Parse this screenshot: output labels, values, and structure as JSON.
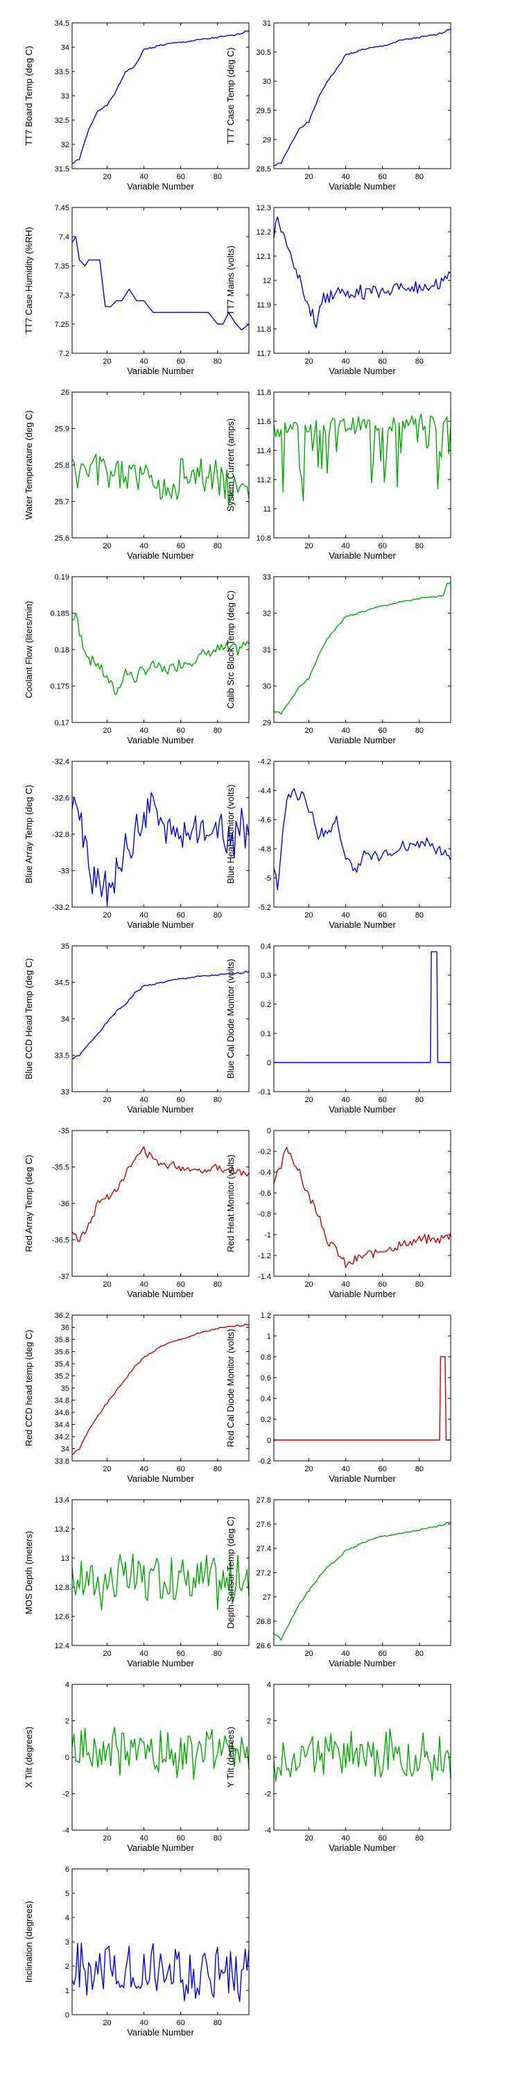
{
  "chart_data": [
    {
      "type": "line",
      "xlabel": "Variable Number",
      "ylabel": "TT7 Board Temp (deg C)",
      "color": "#0000ff",
      "xlim": [
        1,
        97
      ],
      "xticks": [
        20,
        40,
        60,
        80
      ],
      "ylim": [
        31.5,
        34.5
      ],
      "yticks": [
        31.5,
        32,
        32.5,
        33,
        33.5,
        34,
        34.5
      ],
      "style": "rise",
      "x": [
        1,
        5,
        10,
        15,
        20,
        25,
        30,
        35,
        40,
        50,
        60,
        70,
        80,
        90,
        97
      ],
      "y": [
        31.6,
        31.7,
        32.3,
        32.7,
        32.8,
        33.1,
        33.5,
        33.6,
        33.95,
        34.05,
        34.1,
        34.15,
        34.2,
        34.25,
        34.35
      ]
    },
    {
      "type": "line",
      "xlabel": "Variable Number",
      "ylabel": "TT7 Case Temp (deg C)",
      "color": "#0000ff",
      "xlim": [
        1,
        97
      ],
      "xticks": [
        20,
        40,
        60,
        80
      ],
      "ylim": [
        28.5,
        31
      ],
      "yticks": [
        28.5,
        29,
        29.5,
        30,
        30.5,
        31
      ],
      "style": "rise",
      "x": [
        1,
        5,
        10,
        15,
        20,
        25,
        30,
        35,
        40,
        50,
        60,
        70,
        80,
        90,
        97
      ],
      "y": [
        28.55,
        28.6,
        28.9,
        29.2,
        29.3,
        29.7,
        30.0,
        30.2,
        30.45,
        30.55,
        30.6,
        30.7,
        30.75,
        30.8,
        30.9
      ]
    },
    {
      "type": "line",
      "xlabel": "Variable Number",
      "ylabel": "TT7 Case Humidity (%RH)",
      "color": "#0000ff",
      "xlim": [
        1,
        97
      ],
      "xticks": [
        20,
        40,
        60,
        80
      ],
      "ylim": [
        7.2,
        7.45
      ],
      "yticks": [
        7.2,
        7.25,
        7.3,
        7.35,
        7.4,
        7.45
      ],
      "style": "step",
      "x": [
        1,
        3,
        5,
        8,
        10,
        16,
        19,
        22,
        25,
        28,
        32,
        36,
        40,
        45,
        50,
        55,
        60,
        65,
        70,
        75,
        80,
        83,
        86,
        90,
        93,
        97
      ],
      "y": [
        7.39,
        7.4,
        7.36,
        7.35,
        7.36,
        7.36,
        7.28,
        7.28,
        7.29,
        7.29,
        7.31,
        7.29,
        7.29,
        7.27,
        7.27,
        7.27,
        7.27,
        7.27,
        7.27,
        7.27,
        7.25,
        7.25,
        7.27,
        7.25,
        7.24,
        7.25
      ]
    },
    {
      "type": "line",
      "xlabel": "Variable Number",
      "ylabel": "TT7 Mains (volts)",
      "color": "#0000ff",
      "xlim": [
        1,
        97
      ],
      "xticks": [
        20,
        40,
        60,
        80
      ],
      "ylim": [
        11.7,
        12.3
      ],
      "yticks": [
        11.7,
        11.8,
        11.9,
        12,
        12.1,
        12.2,
        12.3
      ],
      "style": "noisy",
      "noise": 0.025,
      "seed": 4,
      "x": [
        1,
        3,
        5,
        8,
        10,
        15,
        20,
        24,
        28,
        35,
        40,
        50,
        60,
        70,
        80,
        90,
        97
      ],
      "y": [
        12.2,
        12.27,
        12.2,
        12.15,
        12.1,
        12.0,
        11.9,
        11.82,
        11.93,
        11.95,
        11.96,
        11.95,
        11.96,
        11.97,
        11.97,
        11.98,
        12.02
      ]
    },
    {
      "type": "line",
      "xlabel": "Variable Number",
      "ylabel": "Water Temperature (deg C)",
      "color": "#00aa00",
      "xlim": [
        1,
        97
      ],
      "xticks": [
        20,
        40,
        60,
        80
      ],
      "ylim": [
        25.6,
        26
      ],
      "yticks": [
        25.6,
        25.7,
        25.8,
        25.9,
        26
      ],
      "style": "noisy",
      "noise": 0.045,
      "seed": 5,
      "x": [
        1,
        20,
        40,
        58,
        60,
        80,
        97
      ],
      "y": [
        25.78,
        25.78,
        25.77,
        25.72,
        25.78,
        25.77,
        25.7
      ]
    },
    {
      "type": "line",
      "xlabel": "Variable Number",
      "ylabel": "System Current (amps)",
      "color": "#00aa00",
      "xlim": [
        1,
        97
      ],
      "xticks": [
        20,
        40,
        60,
        80
      ],
      "ylim": [
        10.8,
        11.8
      ],
      "yticks": [
        10.8,
        11,
        11.2,
        11.4,
        11.6,
        11.8
      ],
      "style": "spiky",
      "noise": 0.06,
      "seed": 6,
      "base": 11.55,
      "drop": 0.4,
      "x": [
        1,
        97
      ],
      "y": [
        11.55,
        11.6
      ]
    },
    {
      "type": "line",
      "xlabel": "Variable Number",
      "ylabel": "Coolant Flow (liters/min)",
      "color": "#00aa00",
      "xlim": [
        1,
        97
      ],
      "xticks": [
        20,
        40,
        60,
        80
      ],
      "ylim": [
        0.17,
        0.19
      ],
      "yticks": [
        0.17,
        0.175,
        0.18,
        0.185,
        0.19
      ],
      "style": "noisy",
      "noise": 0.0008,
      "seed": 7,
      "x": [
        1,
        3,
        5,
        10,
        15,
        20,
        25,
        30,
        35,
        40,
        45,
        50,
        60,
        70,
        80,
        90,
        97
      ],
      "y": [
        0.184,
        0.185,
        0.182,
        0.179,
        0.178,
        0.176,
        0.174,
        0.177,
        0.176,
        0.177,
        0.178,
        0.177,
        0.178,
        0.179,
        0.18,
        0.18,
        0.181
      ]
    },
    {
      "type": "line",
      "xlabel": "Variable Number",
      "ylabel": "Calib Src Block Temp (deg C)",
      "color": "#00aa00",
      "xlim": [
        1,
        97
      ],
      "xticks": [
        20,
        40,
        60,
        80
      ],
      "ylim": [
        29,
        33
      ],
      "yticks": [
        29,
        30,
        31,
        32,
        33
      ],
      "style": "rise",
      "x": [
        1,
        5,
        10,
        15,
        20,
        25,
        30,
        35,
        40,
        50,
        60,
        70,
        80,
        90,
        93,
        95,
        97
      ],
      "y": [
        29.3,
        29.25,
        29.6,
        30.0,
        30.2,
        30.8,
        31.3,
        31.6,
        31.9,
        32.05,
        32.2,
        32.3,
        32.4,
        32.45,
        32.5,
        32.8,
        32.85
      ]
    },
    {
      "type": "line",
      "xlabel": "Variable Number",
      "ylabel": "Blue Array Temp (deg C)",
      "color": "#0000ff",
      "xlim": [
        1,
        97
      ],
      "xticks": [
        20,
        40,
        60,
        80
      ],
      "ylim": [
        -33.2,
        -32.4
      ],
      "yticks": [
        -33.2,
        -33,
        -32.8,
        -32.6,
        -32.4
      ],
      "style": "noisy",
      "noise": 0.1,
      "seed": 9,
      "x": [
        1,
        5,
        10,
        15,
        20,
        25,
        30,
        40,
        45,
        50,
        60,
        70,
        80,
        90,
        97
      ],
      "y": [
        -32.6,
        -32.7,
        -33.0,
        -33.1,
        -33.1,
        -33.0,
        -32.9,
        -32.7,
        -32.6,
        -32.8,
        -32.8,
        -32.75,
        -32.8,
        -32.8,
        -32.75
      ]
    },
    {
      "type": "line",
      "xlabel": "Variable Number",
      "ylabel": "Blue Heat Monitor (volts)",
      "color": "#0000ff",
      "xlim": [
        1,
        97
      ],
      "xticks": [
        20,
        40,
        60,
        80
      ],
      "ylim": [
        -5.2,
        -4.2
      ],
      "yticks": [
        -5.2,
        -5,
        -4.8,
        -4.6,
        -4.4,
        -4.2
      ],
      "style": "noisy",
      "noise": 0.04,
      "seed": 10,
      "x": [
        1,
        3,
        5,
        8,
        12,
        18,
        22,
        25,
        30,
        35,
        40,
        45,
        50,
        60,
        70,
        80,
        90,
        97
      ],
      "y": [
        -4.9,
        -5.1,
        -4.8,
        -4.45,
        -4.4,
        -4.45,
        -4.6,
        -4.7,
        -4.7,
        -4.6,
        -4.85,
        -4.95,
        -4.85,
        -4.85,
        -4.8,
        -4.75,
        -4.8,
        -4.85
      ]
    },
    {
      "type": "line",
      "xlabel": "Variable Number",
      "ylabel": "Blue CCD Head Temp (deg C)",
      "color": "#0000ff",
      "xlim": [
        1,
        97
      ],
      "xticks": [
        20,
        40,
        60,
        80
      ],
      "ylim": [
        33,
        35
      ],
      "yticks": [
        33,
        33.5,
        34,
        34.5,
        35
      ],
      "style": "rise",
      "x": [
        1,
        5,
        10,
        15,
        20,
        25,
        30,
        35,
        40,
        50,
        60,
        70,
        80,
        90,
        97
      ],
      "y": [
        33.45,
        33.5,
        33.65,
        33.8,
        33.95,
        34.1,
        34.2,
        34.35,
        34.45,
        34.5,
        34.55,
        34.58,
        34.6,
        34.62,
        34.65
      ]
    },
    {
      "type": "line",
      "xlabel": "Variable Number",
      "ylabel": "Blue Cal Diode Monitor (volts)",
      "color": "#0000ff",
      "xlim": [
        1,
        97
      ],
      "xticks": [
        20,
        40,
        60,
        80
      ],
      "ylim": [
        -0.1,
        0.4
      ],
      "yticks": [
        -0.1,
        0,
        0.1,
        0.2,
        0.3,
        0.4
      ],
      "style": "pulse",
      "x": [
        1,
        86,
        86.5,
        89.5,
        90,
        97
      ],
      "y": [
        0,
        0,
        0.38,
        0.38,
        0,
        0
      ]
    },
    {
      "type": "line",
      "xlabel": "Variable Number",
      "ylabel": "Red Array Temp (deg C)",
      "color": "#cc0000",
      "xlim": [
        1,
        97
      ],
      "xticks": [
        20,
        40,
        60,
        80
      ],
      "ylim": [
        -37,
        -35
      ],
      "yticks": [
        -37,
        -36.5,
        -36,
        -35.5,
        -35
      ],
      "style": "noisy",
      "noise": 0.05,
      "seed": 13,
      "x": [
        1,
        5,
        10,
        15,
        20,
        25,
        30,
        35,
        40,
        45,
        50,
        60,
        70,
        80,
        90,
        97
      ],
      "y": [
        -36.4,
        -36.5,
        -36.3,
        -36.0,
        -35.9,
        -35.8,
        -35.6,
        -35.4,
        -35.25,
        -35.4,
        -35.45,
        -35.5,
        -35.55,
        -35.5,
        -35.55,
        -35.6
      ]
    },
    {
      "type": "line",
      "xlabel": "Variable Number",
      "ylabel": "Red Heat Monitor (volts)",
      "color": "#cc0000",
      "xlim": [
        1,
        97
      ],
      "xticks": [
        20,
        40,
        60,
        80
      ],
      "ylim": [
        -1.4,
        0
      ],
      "yticks": [
        -1.4,
        -1.2,
        -1,
        -0.8,
        -0.6,
        -0.4,
        -0.2,
        0
      ],
      "style": "noisy",
      "noise": 0.04,
      "seed": 14,
      "x": [
        1,
        5,
        8,
        12,
        18,
        25,
        30,
        35,
        40,
        45,
        50,
        60,
        70,
        80,
        90,
        97
      ],
      "y": [
        -0.5,
        -0.35,
        -0.15,
        -0.3,
        -0.55,
        -0.8,
        -1.05,
        -1.15,
        -1.3,
        -1.25,
        -1.2,
        -1.15,
        -1.1,
        -1.05,
        -1.05,
        -1.0
      ]
    },
    {
      "type": "line",
      "xlabel": "Variable Number",
      "ylabel": "Red CCD head temp (deg C)",
      "color": "#cc0000",
      "xlim": [
        1,
        97
      ],
      "xticks": [
        20,
        40,
        60,
        80
      ],
      "ylim": [
        33.8,
        36.2
      ],
      "yticks": [
        33.8,
        34,
        34.2,
        34.4,
        34.6,
        34.8,
        35,
        35.2,
        35.4,
        35.6,
        35.8,
        36,
        36.2
      ],
      "style": "rise",
      "x": [
        1,
        5,
        10,
        15,
        20,
        25,
        30,
        35,
        40,
        50,
        60,
        70,
        80,
        90,
        97
      ],
      "y": [
        33.9,
        34.0,
        34.3,
        34.55,
        34.75,
        34.95,
        35.15,
        35.35,
        35.5,
        35.7,
        35.8,
        35.9,
        35.98,
        36.02,
        36.05
      ]
    },
    {
      "type": "line",
      "xlabel": "Variable Number",
      "ylabel": "Red Cal Diode Monitor (volts)",
      "color": "#cc0000",
      "xlim": [
        1,
        97
      ],
      "xticks": [
        20,
        40,
        60,
        80
      ],
      "ylim": [
        -0.2,
        1.2
      ],
      "yticks": [
        -0.2,
        0,
        0.2,
        0.4,
        0.6,
        0.8,
        1,
        1.2
      ],
      "style": "pulse",
      "x": [
        1,
        91,
        91.5,
        94,
        94.5,
        97
      ],
      "y": [
        0,
        0,
        0.8,
        0.8,
        0,
        0
      ]
    },
    {
      "type": "line",
      "xlabel": "Variable Number",
      "ylabel": "MOS Depth (meters)",
      "color": "#00aa00",
      "xlim": [
        1,
        97
      ],
      "xticks": [
        20,
        40,
        60,
        80
      ],
      "ylim": [
        12.4,
        13.4
      ],
      "yticks": [
        12.4,
        12.6,
        12.8,
        13,
        13.2,
        13.4
      ],
      "style": "noisy",
      "noise": 0.16,
      "seed": 17,
      "x": [
        1,
        20,
        40,
        60,
        80,
        97
      ],
      "y": [
        12.85,
        12.85,
        12.85,
        12.85,
        12.85,
        12.8
      ]
    },
    {
      "type": "line",
      "xlabel": "Variable Number",
      "ylabel": "Depth Sensor Temp (deg C)",
      "color": "#00aa00",
      "xlim": [
        1,
        97
      ],
      "xticks": [
        20,
        40,
        60,
        80
      ],
      "ylim": [
        26.6,
        27.8
      ],
      "yticks": [
        26.6,
        26.8,
        27,
        27.2,
        27.4,
        27.6,
        27.8
      ],
      "style": "rise",
      "x": [
        1,
        5,
        10,
        15,
        20,
        25,
        30,
        35,
        40,
        50,
        60,
        70,
        80,
        90,
        97
      ],
      "y": [
        26.7,
        26.65,
        26.8,
        26.95,
        27.05,
        27.15,
        27.25,
        27.3,
        27.38,
        27.45,
        27.5,
        27.52,
        27.55,
        27.58,
        27.62
      ]
    },
    {
      "type": "line",
      "xlabel": "Variable Number",
      "ylabel": "X Tilt (degrees)",
      "color": "#00aa00",
      "xlim": [
        1,
        97
      ],
      "xticks": [
        20,
        40,
        60,
        80
      ],
      "ylim": [
        -4,
        4
      ],
      "yticks": [
        -4,
        -2,
        0,
        2,
        4
      ],
      "style": "noisy",
      "noise": 1.2,
      "seed": 19,
      "x": [
        1,
        20,
        40,
        60,
        80,
        97
      ],
      "y": [
        0.3,
        0.3,
        0.3,
        0.3,
        0.3,
        0.3
      ]
    },
    {
      "type": "line",
      "xlabel": "Variable Number",
      "ylabel": "Y Tilt (degrees)",
      "color": "#00aa00",
      "xlim": [
        1,
        97
      ],
      "xticks": [
        20,
        40,
        60,
        80
      ],
      "ylim": [
        -4,
        4
      ],
      "yticks": [
        -4,
        -2,
        0,
        2,
        4
      ],
      "style": "noisy",
      "noise": 1.2,
      "seed": 20,
      "x": [
        1,
        20,
        40,
        60,
        80,
        97
      ],
      "y": [
        0,
        0,
        0,
        0,
        0,
        0
      ]
    },
    {
      "type": "line",
      "xlabel": "Variable Number",
      "ylabel": "Inclination (degrees)",
      "color": "#0000ff",
      "xlim": [
        1,
        97
      ],
      "xticks": [
        20,
        40,
        60,
        80
      ],
      "ylim": [
        0,
        6
      ],
      "yticks": [
        0,
        1,
        2,
        3,
        4,
        5,
        6
      ],
      "style": "noisy",
      "noise": 1.0,
      "seed": 21,
      "floor": 0.1,
      "x": [
        1,
        20,
        40,
        60,
        80,
        97
      ],
      "y": [
        1.8,
        1.8,
        1.8,
        1.8,
        1.8,
        1.8
      ]
    }
  ]
}
